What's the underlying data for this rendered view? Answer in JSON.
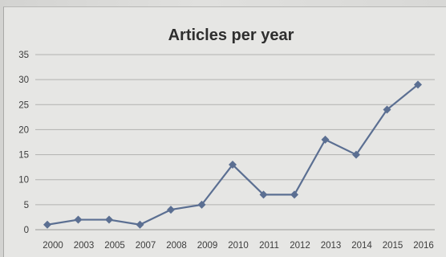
{
  "chart_data": {
    "type": "line",
    "title": "Articles per year",
    "xlabel": "",
    "ylabel": "",
    "categories": [
      "2000",
      "2003",
      "2005",
      "2007",
      "2008",
      "2009",
      "2010",
      "2011",
      "2012",
      "2013",
      "2014",
      "2015",
      "2016"
    ],
    "series": [
      {
        "values": [
          1,
          2,
          2,
          1,
          4,
          5,
          13,
          7,
          7,
          18,
          15,
          24,
          29
        ],
        "color": "#5b6f92",
        "marker": "diamond"
      }
    ],
    "ylim": [
      0,
      35
    ],
    "yticks": [
      0,
      5,
      10,
      15,
      20,
      25,
      30,
      35
    ],
    "grid": true,
    "legend": "none"
  }
}
